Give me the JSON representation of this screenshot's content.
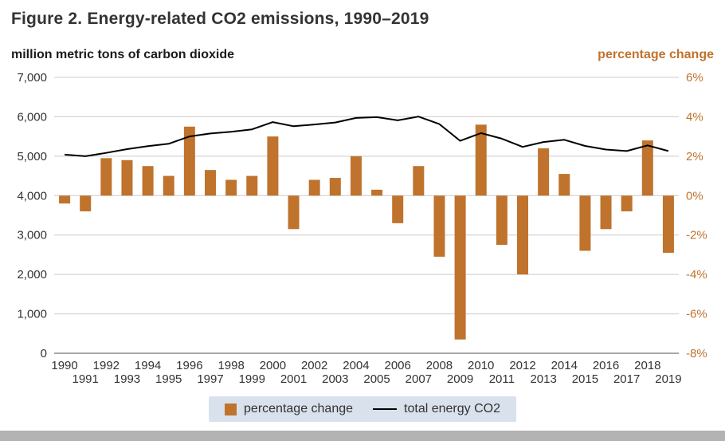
{
  "title": "Figure 2. Energy-related CO2 emissions, 1990–2019",
  "left_axis_title": "million metric tons of carbon dioxide",
  "right_axis_title": "percentage change",
  "legend": {
    "bar_label": "percentage change",
    "line_label": "total energy CO2"
  },
  "colors": {
    "bar": "#bf732d",
    "line": "#000000",
    "right_axis_text": "#bf732d",
    "left_axis_text": "#333333",
    "grid": "#cccccc",
    "baseline": "#8c8c8c",
    "legend_bg": "#d9e1ec",
    "footer_bar": "#b3b3b3"
  },
  "chart_data": {
    "type": "bar+line",
    "title": "Figure 2. Energy-related CO2 emissions, 1990–2019",
    "categories": [
      1990,
      1991,
      1992,
      1993,
      1994,
      1995,
      1996,
      1997,
      1998,
      1999,
      2000,
      2001,
      2002,
      2003,
      2004,
      2005,
      2006,
      2007,
      2008,
      2009,
      2010,
      2011,
      2012,
      2013,
      2014,
      2015,
      2016,
      2017,
      2018,
      2019
    ],
    "series": [
      {
        "name": "percentage change",
        "type": "bar",
        "axis": "right",
        "unit": "%",
        "values": [
          -0.4,
          -0.8,
          1.9,
          1.8,
          1.5,
          1.0,
          3.5,
          1.3,
          0.8,
          1.0,
          3.0,
          -1.7,
          0.8,
          0.9,
          2.0,
          0.3,
          -1.4,
          1.5,
          -3.1,
          -7.3,
          3.6,
          -2.5,
          -4.0,
          2.4,
          1.1,
          -2.8,
          -1.7,
          -0.8,
          2.8,
          -2.9
        ]
      },
      {
        "name": "total energy CO2",
        "type": "line",
        "axis": "left",
        "unit": "million metric tons",
        "values": [
          5040,
          5000,
          5085,
          5180,
          5255,
          5315,
          5500,
          5575,
          5620,
          5680,
          5865,
          5760,
          5805,
          5855,
          5970,
          5990,
          5910,
          6005,
          5815,
          5390,
          5585,
          5445,
          5235,
          5360,
          5415,
          5260,
          5170,
          5130,
          5275,
          5130
        ]
      }
    ],
    "left_axis": {
      "label": "million metric tons of carbon dioxide",
      "min": 0,
      "max": 7000,
      "step": 1000,
      "tick_labels": [
        "7,000",
        "6,000",
        "5,000",
        "4,000",
        "3,000",
        "2,000",
        "1,000",
        "0"
      ]
    },
    "right_axis": {
      "label": "percentage change",
      "min": -8,
      "max": 6,
      "step": 2,
      "tick_labels": [
        "6%",
        "4%",
        "2%",
        "0%",
        "-2%",
        "-4%",
        "-6%",
        "-8%"
      ]
    },
    "grid": true,
    "legend_position": "bottom"
  }
}
